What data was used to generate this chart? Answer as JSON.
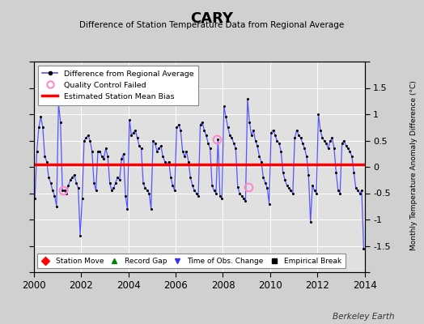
{
  "title": "CARY",
  "subtitle": "Difference of Station Temperature Data from Regional Average",
  "ylabel_right": "Monthly Temperature Anomaly Difference (°C)",
  "watermark": "Berkeley Earth",
  "xlim": [
    2000,
    2014
  ],
  "ylim": [
    -2,
    2
  ],
  "yticks": [
    -2,
    -1.5,
    -1,
    -0.5,
    0,
    0.5,
    1,
    1.5,
    2
  ],
  "xticks": [
    2000,
    2002,
    2004,
    2006,
    2008,
    2010,
    2012,
    2014
  ],
  "mean_bias": 0.05,
  "line_color": "#5555ff",
  "marker_color": "#000000",
  "bias_color": "#ff0000",
  "bg_color": "#e0e0e0",
  "fig_bg_color": "#d0d0d0",
  "qc_failed_color": "#ff88cc",
  "qc_failed_points": [
    [
      2001.25,
      -0.45
    ],
    [
      2007.75,
      0.52
    ],
    [
      2009.08,
      -0.38
    ]
  ],
  "time_series": [
    [
      2000.042,
      -0.6
    ],
    [
      2000.125,
      0.3
    ],
    [
      2000.208,
      0.75
    ],
    [
      2000.292,
      0.95
    ],
    [
      2000.375,
      0.75
    ],
    [
      2000.458,
      0.2
    ],
    [
      2000.542,
      0.1
    ],
    [
      2000.625,
      -0.2
    ],
    [
      2000.708,
      -0.3
    ],
    [
      2000.792,
      -0.45
    ],
    [
      2000.875,
      -0.55
    ],
    [
      2000.958,
      -0.75
    ],
    [
      2001.042,
      1.2
    ],
    [
      2001.125,
      0.85
    ],
    [
      2001.208,
      -0.45
    ],
    [
      2001.292,
      -0.45
    ],
    [
      2001.375,
      -0.5
    ],
    [
      2001.458,
      -0.35
    ],
    [
      2001.542,
      -0.25
    ],
    [
      2001.625,
      -0.2
    ],
    [
      2001.708,
      -0.15
    ],
    [
      2001.792,
      -0.3
    ],
    [
      2001.875,
      -0.4
    ],
    [
      2001.958,
      -1.3
    ],
    [
      2002.042,
      -0.6
    ],
    [
      2002.125,
      0.5
    ],
    [
      2002.208,
      0.55
    ],
    [
      2002.292,
      0.6
    ],
    [
      2002.375,
      0.5
    ],
    [
      2002.458,
      0.3
    ],
    [
      2002.542,
      -0.3
    ],
    [
      2002.625,
      -0.45
    ],
    [
      2002.708,
      0.3
    ],
    [
      2002.792,
      0.3
    ],
    [
      2002.875,
      0.2
    ],
    [
      2002.958,
      0.15
    ],
    [
      2003.042,
      0.35
    ],
    [
      2003.125,
      0.2
    ],
    [
      2003.208,
      -0.3
    ],
    [
      2003.292,
      -0.45
    ],
    [
      2003.375,
      -0.4
    ],
    [
      2003.458,
      -0.3
    ],
    [
      2003.542,
      -0.2
    ],
    [
      2003.625,
      -0.25
    ],
    [
      2003.708,
      0.15
    ],
    [
      2003.792,
      0.25
    ],
    [
      2003.875,
      -0.55
    ],
    [
      2003.958,
      -0.8
    ],
    [
      2004.042,
      0.9
    ],
    [
      2004.125,
      0.6
    ],
    [
      2004.208,
      0.65
    ],
    [
      2004.292,
      0.7
    ],
    [
      2004.375,
      0.55
    ],
    [
      2004.458,
      0.4
    ],
    [
      2004.542,
      0.35
    ],
    [
      2004.625,
      -0.3
    ],
    [
      2004.708,
      -0.4
    ],
    [
      2004.792,
      -0.45
    ],
    [
      2004.875,
      -0.5
    ],
    [
      2004.958,
      -0.8
    ],
    [
      2005.042,
      0.5
    ],
    [
      2005.125,
      0.45
    ],
    [
      2005.208,
      0.3
    ],
    [
      2005.292,
      0.35
    ],
    [
      2005.375,
      0.4
    ],
    [
      2005.458,
      0.2
    ],
    [
      2005.542,
      0.1
    ],
    [
      2005.625,
      0.05
    ],
    [
      2005.708,
      0.1
    ],
    [
      2005.792,
      -0.2
    ],
    [
      2005.875,
      -0.35
    ],
    [
      2005.958,
      -0.45
    ],
    [
      2006.042,
      0.75
    ],
    [
      2006.125,
      0.8
    ],
    [
      2006.208,
      0.7
    ],
    [
      2006.292,
      0.3
    ],
    [
      2006.375,
      0.2
    ],
    [
      2006.458,
      0.3
    ],
    [
      2006.542,
      0.1
    ],
    [
      2006.625,
      -0.2
    ],
    [
      2006.708,
      -0.35
    ],
    [
      2006.792,
      -0.45
    ],
    [
      2006.875,
      -0.5
    ],
    [
      2006.958,
      -0.55
    ],
    [
      2007.042,
      0.8
    ],
    [
      2007.125,
      0.85
    ],
    [
      2007.208,
      0.7
    ],
    [
      2007.292,
      0.6
    ],
    [
      2007.375,
      0.45
    ],
    [
      2007.458,
      0.35
    ],
    [
      2007.542,
      -0.35
    ],
    [
      2007.625,
      -0.45
    ],
    [
      2007.708,
      -0.5
    ],
    [
      2007.792,
      0.52
    ],
    [
      2007.875,
      -0.55
    ],
    [
      2007.958,
      -0.6
    ],
    [
      2008.042,
      1.15
    ],
    [
      2008.125,
      0.95
    ],
    [
      2008.208,
      0.75
    ],
    [
      2008.292,
      0.6
    ],
    [
      2008.375,
      0.55
    ],
    [
      2008.458,
      0.45
    ],
    [
      2008.542,
      0.35
    ],
    [
      2008.625,
      -0.38
    ],
    [
      2008.708,
      -0.5
    ],
    [
      2008.792,
      -0.55
    ],
    [
      2008.875,
      -0.6
    ],
    [
      2008.958,
      -0.65
    ],
    [
      2009.042,
      1.3
    ],
    [
      2009.125,
      0.85
    ],
    [
      2009.208,
      0.6
    ],
    [
      2009.292,
      0.7
    ],
    [
      2009.375,
      0.5
    ],
    [
      2009.458,
      0.4
    ],
    [
      2009.542,
      0.2
    ],
    [
      2009.625,
      0.1
    ],
    [
      2009.708,
      -0.2
    ],
    [
      2009.792,
      -0.3
    ],
    [
      2009.875,
      -0.4
    ],
    [
      2009.958,
      -0.7
    ],
    [
      2010.042,
      0.65
    ],
    [
      2010.125,
      0.7
    ],
    [
      2010.208,
      0.6
    ],
    [
      2010.292,
      0.5
    ],
    [
      2010.375,
      0.45
    ],
    [
      2010.458,
      0.3
    ],
    [
      2010.542,
      -0.1
    ],
    [
      2010.625,
      -0.25
    ],
    [
      2010.708,
      -0.35
    ],
    [
      2010.792,
      -0.4
    ],
    [
      2010.875,
      -0.45
    ],
    [
      2010.958,
      -0.5
    ],
    [
      2011.042,
      0.55
    ],
    [
      2011.125,
      0.7
    ],
    [
      2011.208,
      0.6
    ],
    [
      2011.292,
      0.55
    ],
    [
      2011.375,
      0.45
    ],
    [
      2011.458,
      0.35
    ],
    [
      2011.542,
      0.2
    ],
    [
      2011.625,
      -0.15
    ],
    [
      2011.708,
      -1.05
    ],
    [
      2011.792,
      -0.35
    ],
    [
      2011.875,
      -0.45
    ],
    [
      2011.958,
      -0.5
    ],
    [
      2012.042,
      1.0
    ],
    [
      2012.125,
      0.7
    ],
    [
      2012.208,
      0.55
    ],
    [
      2012.292,
      0.5
    ],
    [
      2012.375,
      0.45
    ],
    [
      2012.458,
      0.35
    ],
    [
      2012.542,
      0.5
    ],
    [
      2012.625,
      0.55
    ],
    [
      2012.708,
      0.35
    ],
    [
      2012.792,
      -0.1
    ],
    [
      2012.875,
      -0.45
    ],
    [
      2012.958,
      -0.5
    ],
    [
      2013.042,
      0.45
    ],
    [
      2013.125,
      0.5
    ],
    [
      2013.208,
      0.4
    ],
    [
      2013.292,
      0.35
    ],
    [
      2013.375,
      0.3
    ],
    [
      2013.458,
      0.2
    ],
    [
      2013.542,
      -0.1
    ],
    [
      2013.625,
      -0.4
    ],
    [
      2013.708,
      -0.45
    ],
    [
      2013.792,
      -0.5
    ],
    [
      2013.875,
      -0.45
    ],
    [
      2013.958,
      -1.55
    ]
  ]
}
